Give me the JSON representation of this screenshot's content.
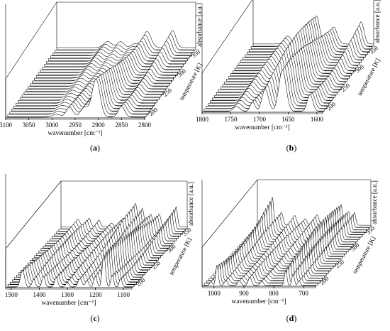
{
  "chart_data": [
    {
      "type": "line",
      "panel_label": "(a)",
      "xlabel": "wavenumber [cm⁻¹]",
      "ylabel": "absorbance [a.u.]",
      "zlabel": "temperature [K]",
      "x_ticks": [
        "3100",
        "3050",
        "3000",
        "2950",
        "2900",
        "2850",
        "2800"
      ],
      "z_ticks": [
        "200",
        "250",
        "300",
        "350"
      ],
      "xlim": [
        3100,
        2800
      ],
      "zlim": [
        190,
        370
      ],
      "peaks": [
        {
          "center": 2990,
          "width": 12,
          "height": 0.16
        },
        {
          "center": 2962,
          "width": 10,
          "height": 0.3
        },
        {
          "center": 2930,
          "width": 12,
          "height": 0.25
        },
        {
          "center": 2905,
          "width": 12,
          "height": 1.0
        },
        {
          "center": 2850,
          "width": 10,
          "height": 0.52
        }
      ]
    },
    {
      "type": "line",
      "panel_label": "(b)",
      "xlabel": "wavenumber [cm⁻¹]",
      "ylabel": "absorbance [a.u.]",
      "zlabel": "temperature [K]",
      "x_ticks": [
        "1800",
        "1750",
        "1700",
        "1650",
        "1600"
      ],
      "z_ticks": [
        "200",
        "250",
        "300",
        "350"
      ],
      "xlim": [
        1800,
        1590
      ],
      "zlim": [
        190,
        370
      ],
      "peaks": [
        {
          "center": 1740,
          "width": 8,
          "height": 0.22
        },
        {
          "center": 1712,
          "width": 6,
          "height": 0.3
        },
        {
          "center": 1690,
          "width": 8,
          "height": 0.85
        },
        {
          "center": 1660,
          "width": 9,
          "height": 1.0
        },
        {
          "center": 1612,
          "width": 7,
          "height": 0.7
        }
      ]
    },
    {
      "type": "line",
      "panel_label": "(c)",
      "xlabel": "wavenumber [cm⁻¹]",
      "ylabel": "absorbance [a.u.]",
      "zlabel": "temperature [K]",
      "x_ticks": [
        "1500",
        "1400",
        "1300",
        "1200",
        "1100"
      ],
      "z_ticks": [
        "200",
        "250",
        "300",
        "350"
      ],
      "xlim": [
        1520,
        1070
      ],
      "zlim": [
        190,
        370
      ],
      "peaks": [
        {
          "center": 1460,
          "width": 10,
          "height": 0.55
        },
        {
          "center": 1420,
          "width": 8,
          "height": 0.35
        },
        {
          "center": 1385,
          "width": 8,
          "height": 0.4
        },
        {
          "center": 1340,
          "width": 8,
          "height": 0.3
        },
        {
          "center": 1300,
          "width": 8,
          "height": 0.28
        },
        {
          "center": 1255,
          "width": 10,
          "height": 0.7
        },
        {
          "center": 1230,
          "width": 8,
          "height": 0.55
        },
        {
          "center": 1200,
          "width": 8,
          "height": 0.5
        },
        {
          "center": 1170,
          "width": 8,
          "height": 1.0
        },
        {
          "center": 1140,
          "width": 7,
          "height": 0.45
        },
        {
          "center": 1110,
          "width": 7,
          "height": 0.65
        }
      ]
    },
    {
      "type": "line",
      "panel_label": "(d)",
      "xlabel": "wavenumber [cm⁻¹]",
      "ylabel": "absorbance [a.u.]",
      "zlabel": "temperature [K]",
      "x_ticks": [
        "1000",
        "900",
        "800",
        "700"
      ],
      "z_ticks": [
        "200",
        "250",
        "300",
        "350"
      ],
      "xlim": [
        1040,
        660
      ],
      "zlim": [
        190,
        370
      ],
      "peaks": [
        {
          "center": 1010,
          "width": 6,
          "height": 0.3
        },
        {
          "center": 990,
          "width": 6,
          "height": 1.0
        },
        {
          "center": 960,
          "width": 8,
          "height": 0.35
        },
        {
          "center": 915,
          "width": 8,
          "height": 0.3
        },
        {
          "center": 880,
          "width": 8,
          "height": 0.28
        },
        {
          "center": 840,
          "width": 8,
          "height": 0.3
        },
        {
          "center": 760,
          "width": 6,
          "height": 0.7
        },
        {
          "center": 735,
          "width": 6,
          "height": 0.5
        },
        {
          "center": 715,
          "width": 6,
          "height": 0.35
        }
      ]
    }
  ]
}
